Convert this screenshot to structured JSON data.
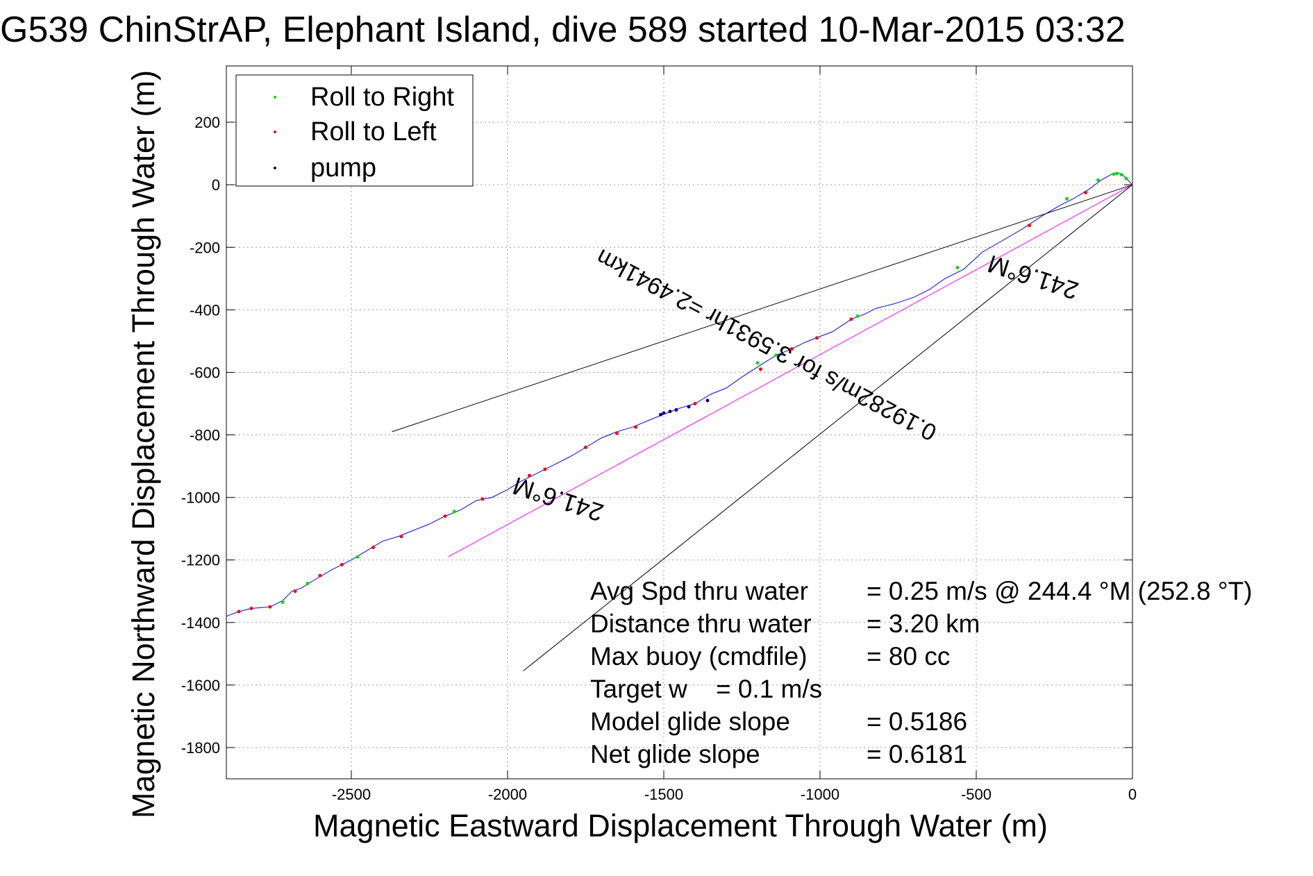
{
  "chart_data": {
    "type": "line",
    "title": "G539 ChinStrAP, Elephant Island, dive 589 started 10-Mar-2015 03:32",
    "xlabel": "Magnetic Eastward Displacement Through Water (m)",
    "ylabel": "Magnetic Northward Displacement Through Water (m)",
    "xlim": [
      -2900,
      0
    ],
    "ylim": [
      -1900,
      380
    ],
    "xticks": [
      -2500,
      -2000,
      -1500,
      -1000,
      -500,
      0
    ],
    "yticks": [
      200,
      0,
      -200,
      -400,
      -600,
      -800,
      -1000,
      -1200,
      -1400,
      -1600,
      -1800
    ],
    "grid": true,
    "legend": {
      "placement": "top-left",
      "entries": [
        {
          "label": "Roll to Right",
          "color": "#00dd00"
        },
        {
          "label": "Roll to Left",
          "color": "#ff0000"
        },
        {
          "label": "pump",
          "color": "#000080"
        }
      ]
    },
    "track": {
      "color": "#0000ff",
      "points": [
        [
          0,
          0
        ],
        [
          -15,
          15
        ],
        [
          -30,
          30
        ],
        [
          -45,
          38
        ],
        [
          -70,
          32
        ],
        [
          -100,
          15
        ],
        [
          -140,
          -15
        ],
        [
          -190,
          -45
        ],
        [
          -230,
          -65
        ],
        [
          -290,
          -100
        ],
        [
          -350,
          -140
        ],
        [
          -410,
          -175
        ],
        [
          -480,
          -215
        ],
        [
          -540,
          -270
        ],
        [
          -600,
          -300
        ],
        [
          -650,
          -335
        ],
        [
          -700,
          -360
        ],
        [
          -760,
          -380
        ],
        [
          -820,
          -395
        ],
        [
          -860,
          -415
        ],
        [
          -900,
          -430
        ],
        [
          -960,
          -470
        ],
        [
          -1000,
          -485
        ],
        [
          -1050,
          -505
        ],
        [
          -1090,
          -525
        ],
        [
          -1140,
          -545
        ],
        [
          -1180,
          -570
        ],
        [
          -1250,
          -615
        ],
        [
          -1300,
          -650
        ],
        [
          -1350,
          -670
        ],
        [
          -1400,
          -700
        ],
        [
          -1450,
          -715
        ],
        [
          -1490,
          -730
        ],
        [
          -1540,
          -750
        ],
        [
          -1600,
          -775
        ],
        [
          -1650,
          -790
        ],
        [
          -1700,
          -810
        ],
        [
          -1750,
          -840
        ],
        [
          -1800,
          -870
        ],
        [
          -1850,
          -895
        ],
        [
          -1880,
          -910
        ],
        [
          -1920,
          -930
        ],
        [
          -1960,
          -950
        ],
        [
          -2000,
          -975
        ],
        [
          -2050,
          -1000
        ],
        [
          -2100,
          -1010
        ],
        [
          -2150,
          -1040
        ],
        [
          -2200,
          -1060
        ],
        [
          -2250,
          -1085
        ],
        [
          -2300,
          -1105
        ],
        [
          -2350,
          -1125
        ],
        [
          -2400,
          -1140
        ],
        [
          -2450,
          -1170
        ],
        [
          -2500,
          -1200
        ],
        [
          -2560,
          -1230
        ],
        [
          -2620,
          -1265
        ],
        [
          -2660,
          -1290
        ],
        [
          -2690,
          -1300
        ],
        [
          -2720,
          -1330
        ],
        [
          -2760,
          -1350
        ],
        [
          -2820,
          -1355
        ],
        [
          -2860,
          -1365
        ],
        [
          -2900,
          -1380
        ]
      ]
    },
    "roll_right_points": [
      [
        -20,
        20
      ],
      [
        -35,
        32
      ],
      [
        -50,
        36
      ],
      [
        -60,
        34
      ],
      [
        -110,
        15
      ],
      [
        -210,
        -45
      ],
      [
        -560,
        -265
      ],
      [
        -880,
        -420
      ],
      [
        -1140,
        -545
      ],
      [
        -1200,
        -570
      ],
      [
        -2170,
        -1045
      ],
      [
        -2480,
        -1190
      ],
      [
        -2640,
        -1275
      ],
      [
        -2720,
        -1335
      ]
    ],
    "roll_left_points": [
      [
        -150,
        -25
      ],
      [
        -330,
        -130
      ],
      [
        -900,
        -430
      ],
      [
        -1010,
        -490
      ],
      [
        -1090,
        -525
      ],
      [
        -1190,
        -590
      ],
      [
        -1400,
        -700
      ],
      [
        -1590,
        -775
      ],
      [
        -1650,
        -795
      ],
      [
        -1750,
        -840
      ],
      [
        -1880,
        -910
      ],
      [
        -1930,
        -930
      ],
      [
        -2080,
        -1005
      ],
      [
        -2200,
        -1060
      ],
      [
        -2340,
        -1125
      ],
      [
        -2430,
        -1160
      ],
      [
        -2530,
        -1215
      ],
      [
        -2600,
        -1250
      ],
      [
        -2680,
        -1300
      ],
      [
        -2760,
        -1350
      ],
      [
        -2820,
        -1355
      ],
      [
        -2860,
        -1365
      ]
    ],
    "pump_points": [
      [
        -1360,
        -690
      ],
      [
        -1420,
        -710
      ],
      [
        -1460,
        -720
      ],
      [
        -1480,
        -725
      ],
      [
        -1500,
        -730
      ],
      [
        -1510,
        -735
      ]
    ],
    "reference_lines": [
      {
        "color": "#000000",
        "from": [
          0,
          0
        ],
        "to": [
          -2370,
          -790
        ]
      },
      {
        "color": "#000000",
        "from": [
          0,
          0
        ],
        "to": [
          -1950,
          -1555
        ]
      },
      {
        "color": "#ff00ff",
        "from": [
          0,
          0
        ],
        "to": [
          -2190,
          -1190
        ]
      }
    ],
    "annotations": [
      {
        "text": "241.6°M",
        "at": [
          -1830,
          -980
        ],
        "angle_deg": 198
      },
      {
        "text": "241.6°M",
        "at": [
          -310,
          -270
        ],
        "angle_deg": 198
      },
      {
        "text": "0.19282m/s for 3.5931hr =2.4941km",
        "at": [
          -1160,
          -490
        ],
        "angle_deg": 208
      }
    ],
    "stats": [
      {
        "label": "Avg Spd thru water",
        "value": "=  0.25 m/s @ 244.4 °M (252.8 °T)"
      },
      {
        "label": "Distance thru water",
        "value": "=  3.20 km"
      },
      {
        "label": "Max buoy (cmdfile)",
        "value": "= 80 cc"
      },
      {
        "label": "Target w    = 0.1 m/s",
        "value": ""
      },
      {
        "label": "Model glide slope",
        "value": "= 0.5186"
      },
      {
        "label": "Net glide slope",
        "value": "= 0.6181"
      }
    ]
  }
}
